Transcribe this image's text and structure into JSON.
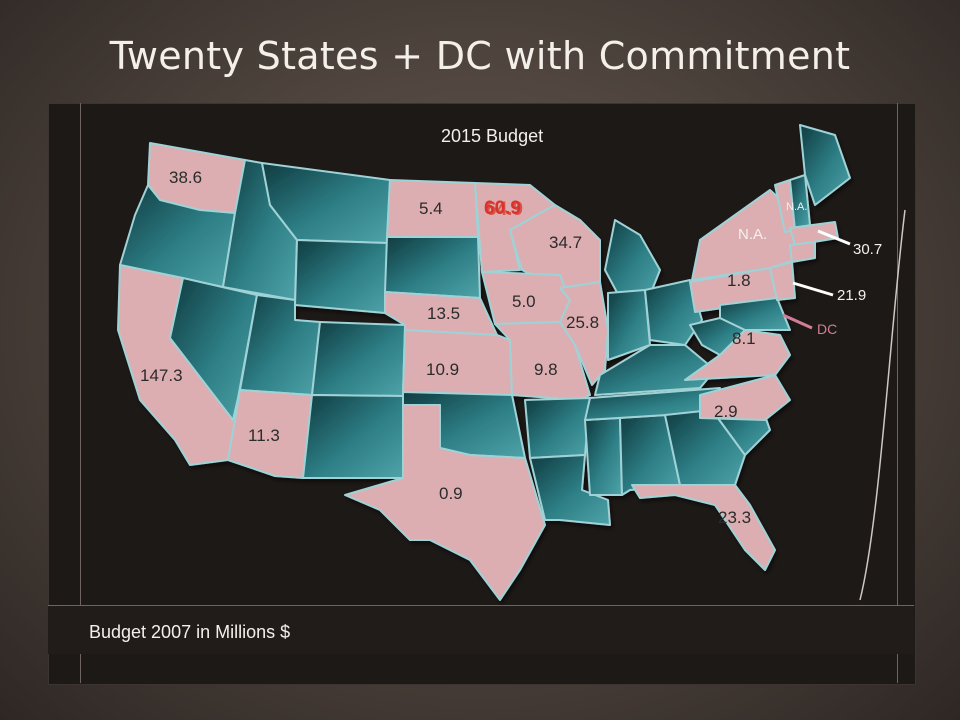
{
  "title": "Twenty States + DC with Commitment",
  "header": "2015 Budget",
  "footnote": "Budget 2007 in Millions $",
  "colors": {
    "committed_state": "#dcaeb1",
    "other_state": "#2e7f86",
    "border": "#9fd2d6",
    "highlight_value": "#d8342a",
    "dc_callout": "#d47d98"
  },
  "labels": {
    "washington": "38.6",
    "california": "147.3",
    "arizona": "11.3",
    "texas": "0.9",
    "north_dakota": "5.4",
    "minnesota_a": "60.9",
    "minnesota_b": "64.9",
    "wisconsin": "34.7",
    "iowa": "5.0",
    "nebraska": "13.5",
    "illinois": "25.8",
    "kansas": "10.9",
    "missouri": "9.8",
    "new_york": "N.A.",
    "vermont": "N.A.",
    "pennsylvania": "1.8",
    "virginia": "8.1",
    "dc": "DC",
    "north_carolina": "2.9",
    "florida": "23.3",
    "massachusetts_callout": "30.7",
    "new_jersey_callout": "21.9"
  }
}
